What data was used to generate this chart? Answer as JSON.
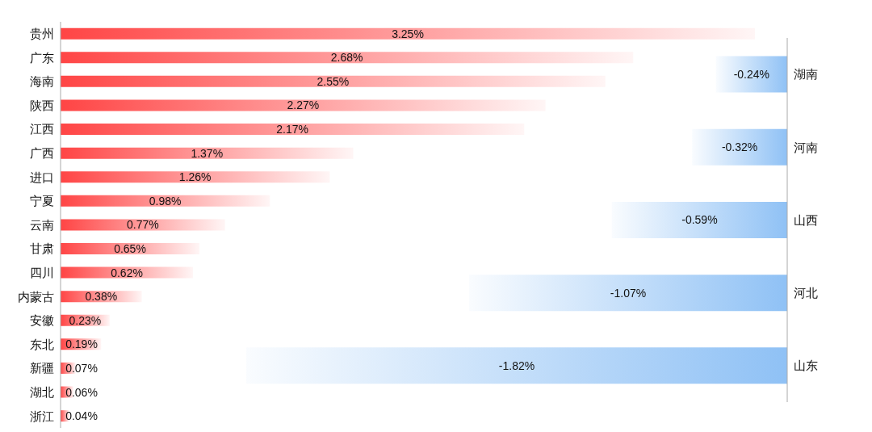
{
  "chart_data": [
    {
      "type": "bar",
      "orientation": "horizontal",
      "categories": [
        "贵州",
        "广东",
        "海南",
        "陕西",
        "江西",
        "广西",
        "进口",
        "宁夏",
        "云南",
        "甘肃",
        "四川",
        "内蒙古",
        "安徽",
        "东北",
        "新疆",
        "湖北",
        "浙江"
      ],
      "values": [
        3.25,
        2.68,
        2.55,
        2.27,
        2.17,
        1.37,
        1.26,
        0.98,
        0.77,
        0.65,
        0.62,
        0.38,
        0.23,
        0.19,
        0.07,
        0.06,
        0.04
      ],
      "value_labels": [
        "3.25%",
        "2.68%",
        "2.55%",
        "2.27%",
        "2.17%",
        "1.37%",
        "1.26%",
        "0.98%",
        "0.77%",
        "0.65%",
        "0.62%",
        "0.38%",
        "0.23%",
        "0.19%",
        "0.07%",
        "0.06%",
        "0.04%"
      ],
      "color": "#ff4545"
    },
    {
      "type": "bar",
      "orientation": "horizontal",
      "categories": [
        "湖南",
        "河南",
        "山西",
        "河北",
        "山东"
      ],
      "values": [
        -0.24,
        -0.32,
        -0.59,
        -1.07,
        -1.82
      ],
      "value_labels": [
        "-0.24%",
        "-0.32%",
        "-0.59%",
        "-1.07%",
        "-1.82%"
      ],
      "color": "#8fc1f5"
    }
  ]
}
